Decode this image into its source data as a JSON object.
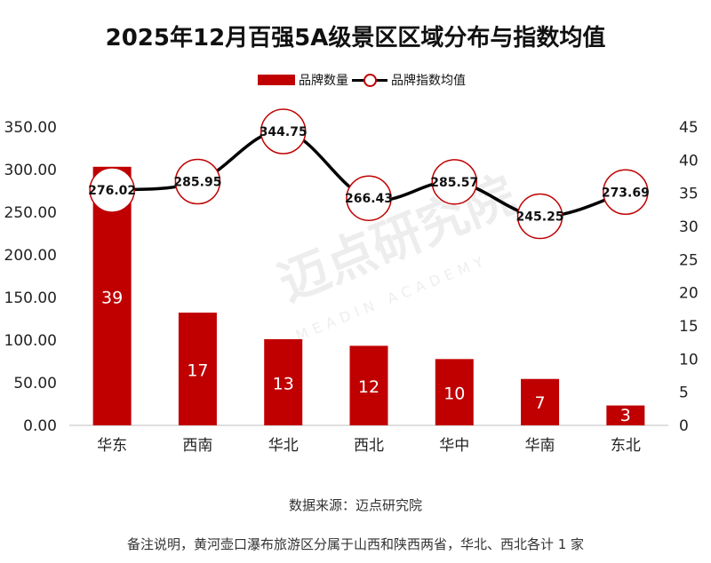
{
  "title": "2025年12月百强5A级景区区域分布与指数均值",
  "legend": {
    "bar": "品牌数量",
    "line": "品牌指数均值"
  },
  "watermark": {
    "main": "迈点研究院",
    "sub": "MEADIN ACADEMY"
  },
  "source": "数据来源：迈点研究院",
  "note": "备注说明，黄河壶口瀑布旅游区分属于山西和陕西两省，华北、西北各计 1 家",
  "colors": {
    "bar": "#c00000",
    "line": "#000000",
    "marker_border": "#c00000"
  },
  "chart_data": {
    "type": "bar+line",
    "categories": [
      "华东",
      "西南",
      "华北",
      "西北",
      "华中",
      "华南",
      "东北"
    ],
    "series": [
      {
        "name": "品牌数量",
        "type": "bar",
        "axis": "right",
        "values": [
          39,
          17,
          13,
          12,
          10,
          7,
          3
        ]
      },
      {
        "name": "品牌指数均值",
        "type": "line",
        "axis": "left",
        "values": [
          276.02,
          285.95,
          344.75,
          266.43,
          285.57,
          245.25,
          273.69
        ]
      }
    ],
    "left_axis": {
      "min": 0,
      "max": 350,
      "step": 50,
      "tick_labels": [
        "0.00",
        "50.00",
        "100.00",
        "150.00",
        "200.00",
        "250.00",
        "300.00",
        "350.00"
      ]
    },
    "right_axis": {
      "min": 0,
      "max": 45,
      "step": 5,
      "tick_labels": [
        "0",
        "5",
        "10",
        "15",
        "20",
        "25",
        "30",
        "35",
        "40",
        "45"
      ]
    }
  }
}
